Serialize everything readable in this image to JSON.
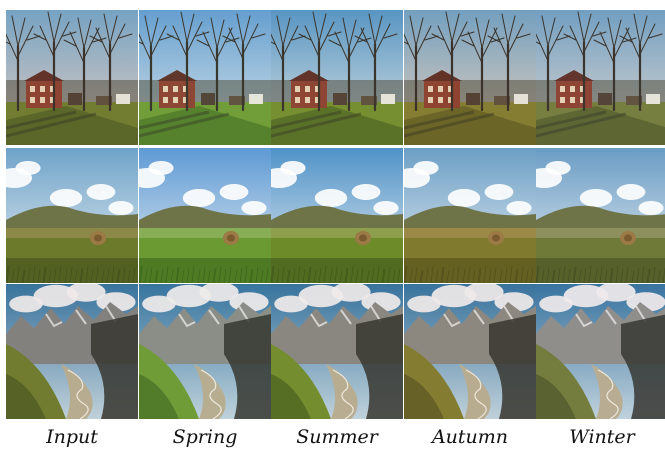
{
  "figure": {
    "columns": [
      "Input",
      "Spring",
      "Summer",
      "Autumn",
      "Winter"
    ],
    "rows": [
      "house-with-bare-trees",
      "grassy-hill-with-hay-bale",
      "alpine-mountain-valley"
    ]
  },
  "palette": {
    "Input": {
      "sky_top": "#6fa3c9",
      "sky_bot": "#e9d2c6",
      "grass": "#6c7a2c",
      "grass_dark": "#3e4d1b",
      "mtn": "#7f7f7f",
      "tint": "#c9a27a"
    },
    "Spring": {
      "sky_top": "#5e9ad4",
      "sky_bot": "#dfe9f2",
      "grass": "#6c9a32",
      "grass_dark": "#37611a",
      "mtn": "#888a86",
      "tint": "#b9d39a"
    },
    "Summer": {
      "sky_top": "#4f92c7",
      "sky_bot": "#e1e8ec",
      "grass": "#6e8b2a",
      "grass_dark": "#3b5418",
      "mtn": "#868480",
      "tint": "#c8c38f"
    },
    "Autumn": {
      "sky_top": "#6c9fc6",
      "sky_bot": "#ecd6c4",
      "grass": "#7f7a2d",
      "grass_dark": "#4f4a1a",
      "mtn": "#8a8680",
      "tint": "#d2a978"
    },
    "Winter": {
      "sky_top": "#6a9cc4",
      "sky_bot": "#e6dcd4",
      "grass": "#6f7a38",
      "grass_dark": "#404a20",
      "mtn": "#8c8c8a",
      "tint": "#c7bea8"
    }
  }
}
